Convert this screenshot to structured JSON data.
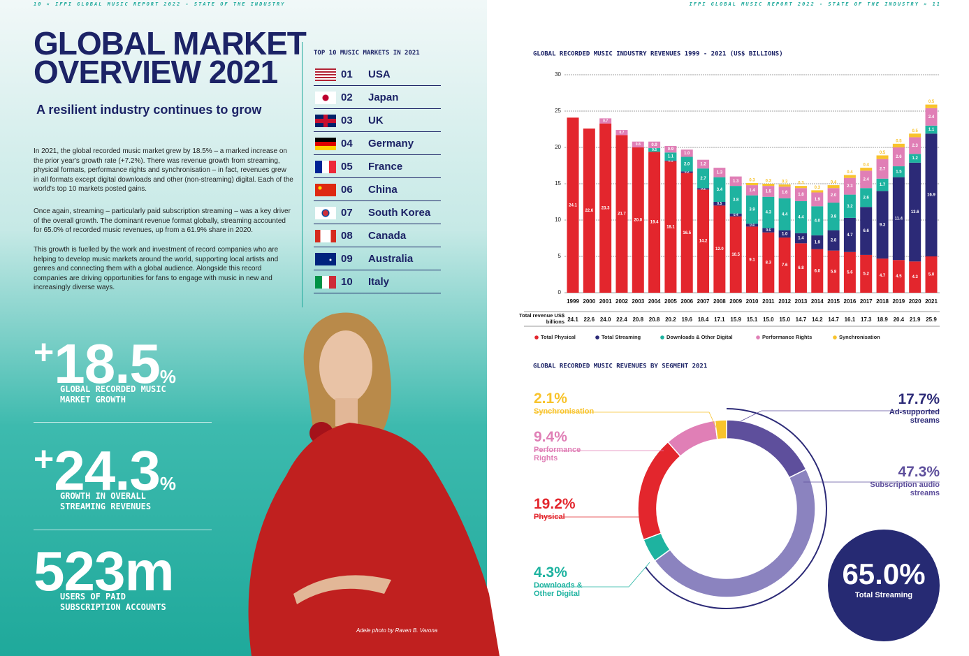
{
  "header_left": "10 « IFPI GLOBAL MUSIC REPORT 2022 - STATE OF THE INDUSTRY",
  "header_right": "IFPI GLOBAL MUSIC REPORT 2022 - STATE OF THE INDUSTRY » 11",
  "title": "GLOBAL MARKET OVERVIEW 2021",
  "subtitle": "A resilient industry continues to grow",
  "paragraphs": [
    "In 2021, the global recorded music market grew by 18.5% – a marked increase on the prior year's growth rate (+7.2%). There was revenue growth from streaming, physical formats, performance rights and synchronisation – in fact, revenues grew in all formats except digital downloads and other (non-streaming) digital. Each of the world's top 10 markets posted gains.",
    "Once again, streaming – particularly paid subscription streaming – was a key driver of the overall growth. The dominant revenue format globally, streaming accounted for 65.0% of recorded music revenues, up from a 61.9% share in 2020.",
    "This growth is fuelled by the work and investment of record companies who are helping to develop music markets around the world, supporting local artists and genres and connecting them with a global audience.  Alongside this record companies are driving opportunities for fans to engage with music in new and increasingly diverse ways."
  ],
  "top_markets": {
    "title": "TOP 10 MUSIC MARKETS IN 2021",
    "items": [
      {
        "rank": "01",
        "name": "USA"
      },
      {
        "rank": "02",
        "name": "Japan"
      },
      {
        "rank": "03",
        "name": "UK"
      },
      {
        "rank": "04",
        "name": "Germany"
      },
      {
        "rank": "05",
        "name": "France"
      },
      {
        "rank": "06",
        "name": "China"
      },
      {
        "rank": "07",
        "name": "South Korea"
      },
      {
        "rank": "08",
        "name": "Canada"
      },
      {
        "rank": "09",
        "name": "Australia"
      },
      {
        "rank": "10",
        "name": "Italy"
      }
    ]
  },
  "stats": [
    {
      "sign": "+",
      "value": "18.5",
      "unit": "%",
      "label": "GLOBAL RECORDED MUSIC MARKET GROWTH"
    },
    {
      "sign": "+",
      "value": "24.3",
      "unit": "%",
      "label": "GROWTH IN OVERALL STREAMING REVENUES"
    },
    {
      "value": "523m",
      "label": "USERS OF PAID SUBSCRIPTION ACCOUNTS"
    }
  ],
  "photo_caption": "Adele photo by Raven B. Varona",
  "chart_data": [
    {
      "type": "stacked-bar",
      "title": "GLOBAL RECORDED MUSIC INDUSTRY REVENUES 1999 - 2021 (US$ BILLIONS)",
      "categories": [
        "1999",
        "2000",
        "2001",
        "2002",
        "2003",
        "2004",
        "2005",
        "2006",
        "2007",
        "2008",
        "2009",
        "2010",
        "2011",
        "2012",
        "2013",
        "2014",
        "2015",
        "2016",
        "2017",
        "2018",
        "2019",
        "2020",
        "2021"
      ],
      "series": [
        {
          "name": "Total Physical",
          "color": "#e3262d",
          "values": [
            24.1,
            22.6,
            23.3,
            21.7,
            20.0,
            19.4,
            18.1,
            16.5,
            14.2,
            12.0,
            10.5,
            9.1,
            8.3,
            7.6,
            6.8,
            6.0,
            5.8,
            5.6,
            5.2,
            4.7,
            4.5,
            4.3,
            5.0
          ],
          "value_labels": [
            "24.1",
            "22.6",
            "23.3",
            "21.7",
            "20.0",
            "19.4",
            "18.1",
            "16.5",
            "14.2",
            "12.0",
            "10.5",
            "9.1",
            "8.3",
            "7.6",
            "6.8",
            "6.0",
            "5.8",
            "5.6",
            "5.2",
            "4.7",
            "4.5",
            "4.3",
            "5.0"
          ]
        },
        {
          "name": "Total Streaming",
          "color": "#2c2a77",
          "values": [
            null,
            null,
            null,
            null,
            null,
            null,
            0.1,
            0.2,
            0.2,
            0.5,
            0.4,
            0.4,
            0.6,
            1.0,
            1.4,
            1.9,
            2.8,
            4.7,
            6.6,
            9.3,
            11.4,
            13.6,
            16.9
          ],
          "value_labels": [
            null,
            null,
            null,
            null,
            null,
            null,
            "0.1",
            "0.2",
            "0.2",
            "0.5",
            "0.4",
            "0.4",
            "0.6",
            "1.0",
            "1.4",
            "1.9",
            "2.8",
            "4.7",
            "6.6",
            "9.3",
            "11.4",
            "13.6",
            "16.9"
          ]
        },
        {
          "name": "Downloads & Other Digital",
          "color": "#1eb3a0",
          "values": [
            null,
            null,
            null,
            null,
            null,
            0.5,
            1.1,
            2.0,
            2.7,
            3.4,
            3.8,
            3.9,
            4.3,
            4.4,
            4.4,
            4.0,
            3.8,
            3.2,
            2.6,
            1.7,
            1.5,
            1.2,
            1.1
          ],
          "value_labels": [
            null,
            null,
            null,
            null,
            null,
            "0.5",
            "1.1",
            "2.0",
            "2.7",
            "3.4",
            "3.8",
            "3.9",
            "4.3",
            "4.4",
            "4.4",
            "4.0",
            "3.8",
            "3.2",
            "2.6",
            "1.7",
            "1.5",
            "1.2",
            "1.1"
          ]
        },
        {
          "name": "Performance Rights",
          "color": "#e07fb6",
          "values": [
            null,
            null,
            0.7,
            0.7,
            0.8,
            0.9,
            0.9,
            1.0,
            1.2,
            1.3,
            1.3,
            1.4,
            1.5,
            1.6,
            1.8,
            1.9,
            2.0,
            2.3,
            2.4,
            2.7,
            2.6,
            2.3,
            2.4
          ],
          "value_labels": [
            null,
            null,
            "0.7",
            "0.7",
            "0.8",
            "0.9",
            "0.9",
            "1.0",
            "1.2",
            "1.3",
            "1.3",
            "1.4",
            "1.5",
            "1.6",
            "1.8",
            "1.9",
            "2.0",
            "2.3",
            "2.4",
            "2.7",
            "2.6",
            "2.3",
            "2.4"
          ]
        },
        {
          "name": "Synchronisation",
          "color": "#f8c32c",
          "values": [
            null,
            null,
            null,
            null,
            null,
            null,
            null,
            null,
            null,
            null,
            null,
            0.3,
            0.3,
            0.3,
            0.3,
            0.3,
            0.4,
            0.4,
            0.4,
            0.5,
            0.5,
            0.5,
            0.5
          ],
          "value_labels": [
            null,
            null,
            null,
            null,
            null,
            null,
            null,
            null,
            null,
            null,
            null,
            "0.3",
            "0.3",
            "0.3",
            "0.3",
            "0.3",
            "0.4",
            "0.4",
            "0.4",
            "0.5",
            "0.5",
            "0.5",
            "0.5"
          ]
        }
      ],
      "ylim": [
        0,
        30
      ],
      "yticks": [
        0,
        5,
        10,
        15,
        20,
        25,
        30
      ],
      "grid": true,
      "totals_label": "Total revenue US$ billions",
      "totals": [
        "24.1",
        "22.6",
        "24.0",
        "22.4",
        "20.8",
        "20.8",
        "20.2",
        "19.6",
        "18.4",
        "17.1",
        "15.9",
        "15.1",
        "15.0",
        "15.0",
        "14.7",
        "14.2",
        "14.7",
        "16.1",
        "17.3",
        "18.9",
        "20.4",
        "21.9",
        "25.9"
      ]
    },
    {
      "type": "donut",
      "title": "GLOBAL RECORDED MUSIC REVENUES BY SEGMENT 2021",
      "categories": [
        "Ad-supported streams",
        "Subscription audio streams",
        "Downloads & Other Digital",
        "Physical",
        "Performance Rights",
        "Synchronisation"
      ],
      "values": [
        17.7,
        47.3,
        4.3,
        19.2,
        9.4,
        2.1
      ],
      "value_labels": [
        "17.7%",
        "47.3%",
        "4.3%",
        "19.2%",
        "9.4%",
        "2.1%"
      ],
      "colors": [
        "#5e4f9c",
        "#8b83bf",
        "#1eb3a0",
        "#e3262d",
        "#e07fb6",
        "#f8c32c"
      ],
      "total_streaming": {
        "value": 65.0,
        "label": "65.0%",
        "text": "Total Streaming"
      }
    }
  ]
}
